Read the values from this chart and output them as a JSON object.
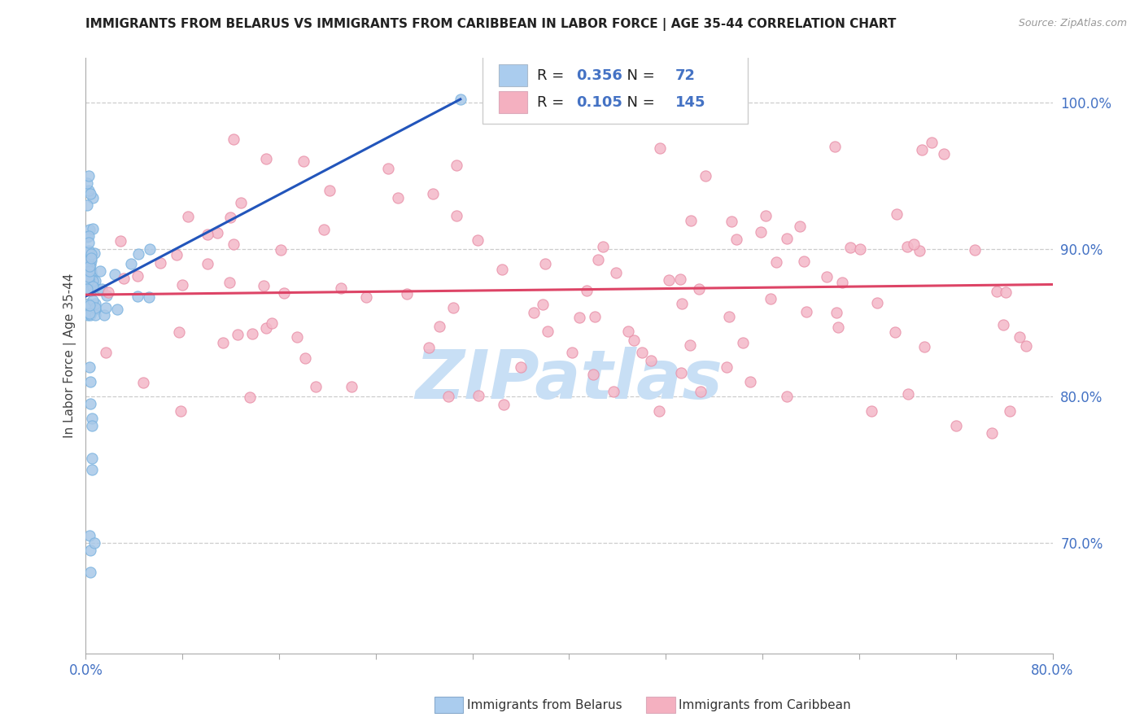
{
  "title": "IMMIGRANTS FROM BELARUS VS IMMIGRANTS FROM CARIBBEAN IN LABOR FORCE | AGE 35-44 CORRELATION CHART",
  "source": "Source: ZipAtlas.com",
  "ylabel": "In Labor Force | Age 35-44",
  "right_yticks": [
    0.7,
    0.8,
    0.9,
    1.0
  ],
  "right_yticklabels": [
    "70.0%",
    "80.0%",
    "90.0%",
    "100.0%"
  ],
  "xmin": 0.0,
  "xmax": 0.8,
  "ymin": 0.625,
  "ymax": 1.03,
  "belarus_color": "#a8c8e8",
  "belarus_edge_color": "#7ab3e0",
  "caribbean_color": "#f4b8c8",
  "caribbean_edge_color": "#e890a8",
  "belarus_line_color": "#2255bb",
  "caribbean_line_color": "#dd4466",
  "legend_R_belarus": "0.356",
  "legend_N_belarus": "72",
  "legend_R_caribbean": "0.105",
  "legend_N_caribbean": "145",
  "watermark": "ZIPatlas",
  "watermark_color": "#c8dff5",
  "grid_color": "#cccccc",
  "axis_color": "#aaaaaa",
  "tick_label_color": "#4472c4",
  "title_color": "#222222",
  "source_color": "#999999",
  "ylabel_color": "#444444",
  "legend_text_color_dark": "#222222",
  "legend_text_color_blue": "#4472c4",
  "legend_rect_color_belarus": "#aaccee",
  "legend_rect_color_caribbean": "#f4b0c0",
  "bottom_legend_belarus_color": "#aaccee",
  "bottom_legend_caribbean_color": "#f4b0c0"
}
